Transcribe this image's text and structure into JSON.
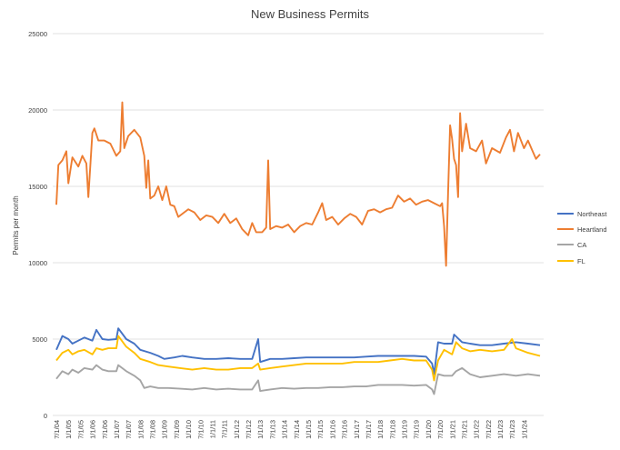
{
  "chart_data": {
    "type": "line",
    "title": "New Business Permits",
    "xlabel": "",
    "ylabel": "Permits per month",
    "ylim": [
      0,
      25000
    ],
    "yticks": [
      0,
      5000,
      10000,
      15000,
      20000,
      25000
    ],
    "ytick_labels": [
      "0",
      "5000",
      "10000",
      "15000",
      "20000",
      "25000"
    ],
    "xlim": [
      "2004-07",
      "2024-09"
    ],
    "xtick_labels": [
      "7/1/04",
      "1/1/05",
      "7/1/05",
      "1/1/06",
      "7/1/06",
      "1/1/07",
      "7/1/07",
      "1/1/08",
      "7/1/08",
      "1/1/09",
      "7/1/09",
      "1/1/10",
      "7/1/10",
      "1/1/11",
      "7/1/11",
      "1/1/12",
      "7/1/12",
      "1/1/13",
      "7/1/13",
      "1/1/14",
      "7/1/14",
      "1/1/15",
      "7/1/15",
      "1/1/16",
      "7/1/16",
      "1/1/17",
      "7/1/17",
      "1/1/18",
      "7/1/18",
      "1/1/19",
      "7/1/19",
      "1/1/20",
      "7/1/20",
      "1/1/21",
      "7/1/21",
      "1/1/22",
      "7/1/22",
      "1/1/23",
      "7/1/23",
      "1/1/24"
    ],
    "grid": true,
    "legend": "right",
    "series": [
      {
        "name": "Northeast",
        "color": "#4472C4",
        "points": [
          [
            "2004-07",
            4300
          ],
          [
            "2004-10",
            5200
          ],
          [
            "2005-01",
            5000
          ],
          [
            "2005-03",
            4700
          ],
          [
            "2005-06",
            4900
          ],
          [
            "2005-09",
            5100
          ],
          [
            "2006-01",
            4900
          ],
          [
            "2006-03",
            5600
          ],
          [
            "2006-06",
            5000
          ],
          [
            "2006-09",
            4950
          ],
          [
            "2007-01",
            5000
          ],
          [
            "2007-02",
            5700
          ],
          [
            "2007-06",
            5000
          ],
          [
            "2007-10",
            4700
          ],
          [
            "2008-01",
            4300
          ],
          [
            "2008-06",
            4100
          ],
          [
            "2008-10",
            3900
          ],
          [
            "2009-01",
            3700
          ],
          [
            "2009-06",
            3800
          ],
          [
            "2009-10",
            3900
          ],
          [
            "2010-03",
            3800
          ],
          [
            "2010-09",
            3700
          ],
          [
            "2011-03",
            3700
          ],
          [
            "2011-09",
            3750
          ],
          [
            "2012-03",
            3700
          ],
          [
            "2012-09",
            3700
          ],
          [
            "2012-12",
            5000
          ],
          [
            "2013-01",
            3500
          ],
          [
            "2013-06",
            3700
          ],
          [
            "2013-12",
            3700
          ],
          [
            "2014-06",
            3750
          ],
          [
            "2014-12",
            3800
          ],
          [
            "2015-06",
            3800
          ],
          [
            "2015-12",
            3800
          ],
          [
            "2016-06",
            3800
          ],
          [
            "2016-12",
            3800
          ],
          [
            "2017-06",
            3850
          ],
          [
            "2017-12",
            3900
          ],
          [
            "2018-06",
            3900
          ],
          [
            "2018-12",
            3900
          ],
          [
            "2019-06",
            3900
          ],
          [
            "2019-12",
            3850
          ],
          [
            "2020-03",
            3400
          ],
          [
            "2020-04",
            2700
          ],
          [
            "2020-06",
            4800
          ],
          [
            "2020-09",
            4700
          ],
          [
            "2021-01",
            4700
          ],
          [
            "2021-02",
            5300
          ],
          [
            "2021-06",
            4800
          ],
          [
            "2021-10",
            4700
          ],
          [
            "2022-03",
            4600
          ],
          [
            "2022-09",
            4600
          ],
          [
            "2023-03",
            4700
          ],
          [
            "2023-09",
            4800
          ],
          [
            "2024-03",
            4700
          ],
          [
            "2024-09",
            4600
          ]
        ]
      },
      {
        "name": "Heartland",
        "color": "#ED7D31",
        "points": [
          [
            "2004-07",
            13800
          ],
          [
            "2004-08",
            16400
          ],
          [
            "2004-10",
            16700
          ],
          [
            "2004-12",
            17300
          ],
          [
            "2005-01",
            15200
          ],
          [
            "2005-03",
            16900
          ],
          [
            "2005-06",
            16300
          ],
          [
            "2005-08",
            17000
          ],
          [
            "2005-10",
            16500
          ],
          [
            "2005-11",
            14300
          ],
          [
            "2006-01",
            18500
          ],
          [
            "2006-02",
            18800
          ],
          [
            "2006-04",
            18000
          ],
          [
            "2006-07",
            18000
          ],
          [
            "2006-10",
            17800
          ],
          [
            "2007-01",
            17000
          ],
          [
            "2007-03",
            17300
          ],
          [
            "2007-04",
            20500
          ],
          [
            "2007-05",
            17500
          ],
          [
            "2007-07",
            18300
          ],
          [
            "2007-10",
            18700
          ],
          [
            "2008-01",
            18200
          ],
          [
            "2008-03",
            17000
          ],
          [
            "2008-04",
            14900
          ],
          [
            "2008-05",
            16700
          ],
          [
            "2008-06",
            14200
          ],
          [
            "2008-08",
            14400
          ],
          [
            "2008-10",
            15000
          ],
          [
            "2008-12",
            14100
          ],
          [
            "2009-02",
            15000
          ],
          [
            "2009-04",
            13800
          ],
          [
            "2009-06",
            13700
          ],
          [
            "2009-08",
            13000
          ],
          [
            "2009-10",
            13200
          ],
          [
            "2010-01",
            13500
          ],
          [
            "2010-04",
            13300
          ],
          [
            "2010-07",
            12800
          ],
          [
            "2010-10",
            13100
          ],
          [
            "2011-01",
            13000
          ],
          [
            "2011-04",
            12600
          ],
          [
            "2011-07",
            13200
          ],
          [
            "2011-10",
            12600
          ],
          [
            "2012-01",
            12900
          ],
          [
            "2012-04",
            12200
          ],
          [
            "2012-07",
            11800
          ],
          [
            "2012-09",
            12600
          ],
          [
            "2012-11",
            12000
          ],
          [
            "2013-02",
            12000
          ],
          [
            "2013-04",
            12300
          ],
          [
            "2013-05",
            16700
          ],
          [
            "2013-06",
            12200
          ],
          [
            "2013-09",
            12400
          ],
          [
            "2013-12",
            12300
          ],
          [
            "2014-03",
            12500
          ],
          [
            "2014-06",
            12000
          ],
          [
            "2014-09",
            12400
          ],
          [
            "2014-12",
            12600
          ],
          [
            "2015-03",
            12500
          ],
          [
            "2015-06",
            13300
          ],
          [
            "2015-08",
            13900
          ],
          [
            "2015-10",
            12800
          ],
          [
            "2016-01",
            13000
          ],
          [
            "2016-04",
            12500
          ],
          [
            "2016-07",
            12900
          ],
          [
            "2016-10",
            13200
          ],
          [
            "2017-01",
            13000
          ],
          [
            "2017-04",
            12500
          ],
          [
            "2017-07",
            13400
          ],
          [
            "2017-10",
            13500
          ],
          [
            "2018-01",
            13300
          ],
          [
            "2018-04",
            13500
          ],
          [
            "2018-07",
            13600
          ],
          [
            "2018-10",
            14400
          ],
          [
            "2019-01",
            14000
          ],
          [
            "2019-04",
            14200
          ],
          [
            "2019-07",
            13800
          ],
          [
            "2019-10",
            14000
          ],
          [
            "2020-01",
            14100
          ],
          [
            "2020-04",
            13900
          ],
          [
            "2020-07",
            13700
          ],
          [
            "2020-08",
            13900
          ],
          [
            "2020-09",
            12400
          ],
          [
            "2020-10",
            9800
          ],
          [
            "2020-11",
            14600
          ],
          [
            "2020-12",
            19000
          ],
          [
            "2021-01",
            18100
          ],
          [
            "2021-02",
            16800
          ],
          [
            "2021-03",
            16400
          ],
          [
            "2021-04",
            14300
          ],
          [
            "2021-05",
            19800
          ],
          [
            "2021-06",
            17300
          ],
          [
            "2021-08",
            19100
          ],
          [
            "2021-10",
            17500
          ],
          [
            "2022-01",
            17300
          ],
          [
            "2022-04",
            18000
          ],
          [
            "2022-06",
            16500
          ],
          [
            "2022-09",
            17500
          ],
          [
            "2023-01",
            17200
          ],
          [
            "2023-04",
            18200
          ],
          [
            "2023-06",
            18700
          ],
          [
            "2023-08",
            17300
          ],
          [
            "2023-10",
            18500
          ],
          [
            "2024-01",
            17500
          ],
          [
            "2024-03",
            18000
          ],
          [
            "2024-05",
            17400
          ],
          [
            "2024-07",
            16800
          ],
          [
            "2024-09",
            17100
          ]
        ]
      },
      {
        "name": "CA",
        "color": "#A5A5A5",
        "points": [
          [
            "2004-07",
            2400
          ],
          [
            "2004-10",
            2900
          ],
          [
            "2005-01",
            2700
          ],
          [
            "2005-03",
            3000
          ],
          [
            "2005-06",
            2800
          ],
          [
            "2005-09",
            3100
          ],
          [
            "2006-01",
            3000
          ],
          [
            "2006-03",
            3300
          ],
          [
            "2006-06",
            3000
          ],
          [
            "2006-09",
            2900
          ],
          [
            "2007-01",
            2900
          ],
          [
            "2007-02",
            3300
          ],
          [
            "2007-06",
            2900
          ],
          [
            "2007-10",
            2600
          ],
          [
            "2008-01",
            2300
          ],
          [
            "2008-03",
            1800
          ],
          [
            "2008-06",
            1900
          ],
          [
            "2008-10",
            1800
          ],
          [
            "2009-03",
            1800
          ],
          [
            "2009-09",
            1750
          ],
          [
            "2010-03",
            1700
          ],
          [
            "2010-09",
            1800
          ],
          [
            "2011-03",
            1700
          ],
          [
            "2011-09",
            1750
          ],
          [
            "2012-03",
            1700
          ],
          [
            "2012-09",
            1700
          ],
          [
            "2012-12",
            2300
          ],
          [
            "2013-01",
            1600
          ],
          [
            "2013-06",
            1700
          ],
          [
            "2013-12",
            1800
          ],
          [
            "2014-06",
            1750
          ],
          [
            "2014-12",
            1800
          ],
          [
            "2015-06",
            1800
          ],
          [
            "2015-12",
            1850
          ],
          [
            "2016-06",
            1850
          ],
          [
            "2016-12",
            1900
          ],
          [
            "2017-06",
            1900
          ],
          [
            "2017-12",
            2000
          ],
          [
            "2018-06",
            2000
          ],
          [
            "2018-12",
            2000
          ],
          [
            "2019-06",
            1950
          ],
          [
            "2019-12",
            2000
          ],
          [
            "2020-03",
            1700
          ],
          [
            "2020-04",
            1400
          ],
          [
            "2020-06",
            2700
          ],
          [
            "2020-09",
            2600
          ],
          [
            "2021-01",
            2600
          ],
          [
            "2021-03",
            2900
          ],
          [
            "2021-06",
            3100
          ],
          [
            "2021-10",
            2700
          ],
          [
            "2022-03",
            2500
          ],
          [
            "2022-09",
            2600
          ],
          [
            "2023-03",
            2700
          ],
          [
            "2023-09",
            2600
          ],
          [
            "2024-03",
            2700
          ],
          [
            "2024-09",
            2600
          ]
        ]
      },
      {
        "name": "FL",
        "color": "#FFC000",
        "points": [
          [
            "2004-07",
            3600
          ],
          [
            "2004-10",
            4100
          ],
          [
            "2005-01",
            4300
          ],
          [
            "2005-03",
            4000
          ],
          [
            "2005-06",
            4200
          ],
          [
            "2005-09",
            4300
          ],
          [
            "2006-01",
            4000
          ],
          [
            "2006-03",
            4400
          ],
          [
            "2006-06",
            4300
          ],
          [
            "2006-09",
            4400
          ],
          [
            "2007-01",
            4400
          ],
          [
            "2007-02",
            5200
          ],
          [
            "2007-06",
            4500
          ],
          [
            "2007-10",
            4100
          ],
          [
            "2008-01",
            3700
          ],
          [
            "2008-06",
            3500
          ],
          [
            "2008-10",
            3300
          ],
          [
            "2009-03",
            3200
          ],
          [
            "2009-09",
            3100
          ],
          [
            "2010-03",
            3000
          ],
          [
            "2010-09",
            3100
          ],
          [
            "2011-03",
            3000
          ],
          [
            "2011-09",
            3000
          ],
          [
            "2012-03",
            3100
          ],
          [
            "2012-09",
            3100
          ],
          [
            "2012-12",
            3400
          ],
          [
            "2013-01",
            3000
          ],
          [
            "2013-06",
            3100
          ],
          [
            "2013-12",
            3200
          ],
          [
            "2014-06",
            3300
          ],
          [
            "2014-12",
            3400
          ],
          [
            "2015-06",
            3400
          ],
          [
            "2015-12",
            3400
          ],
          [
            "2016-06",
            3400
          ],
          [
            "2016-12",
            3500
          ],
          [
            "2017-06",
            3500
          ],
          [
            "2017-12",
            3500
          ],
          [
            "2018-06",
            3600
          ],
          [
            "2018-12",
            3700
          ],
          [
            "2019-06",
            3600
          ],
          [
            "2019-12",
            3600
          ],
          [
            "2020-03",
            3000
          ],
          [
            "2020-04",
            2300
          ],
          [
            "2020-06",
            3600
          ],
          [
            "2020-09",
            4300
          ],
          [
            "2021-01",
            4000
          ],
          [
            "2021-03",
            4800
          ],
          [
            "2021-06",
            4400
          ],
          [
            "2021-10",
            4200
          ],
          [
            "2022-03",
            4300
          ],
          [
            "2022-09",
            4200
          ],
          [
            "2023-03",
            4300
          ],
          [
            "2023-07",
            5000
          ],
          [
            "2023-09",
            4400
          ],
          [
            "2024-03",
            4100
          ],
          [
            "2024-09",
            3900
          ]
        ]
      }
    ]
  }
}
